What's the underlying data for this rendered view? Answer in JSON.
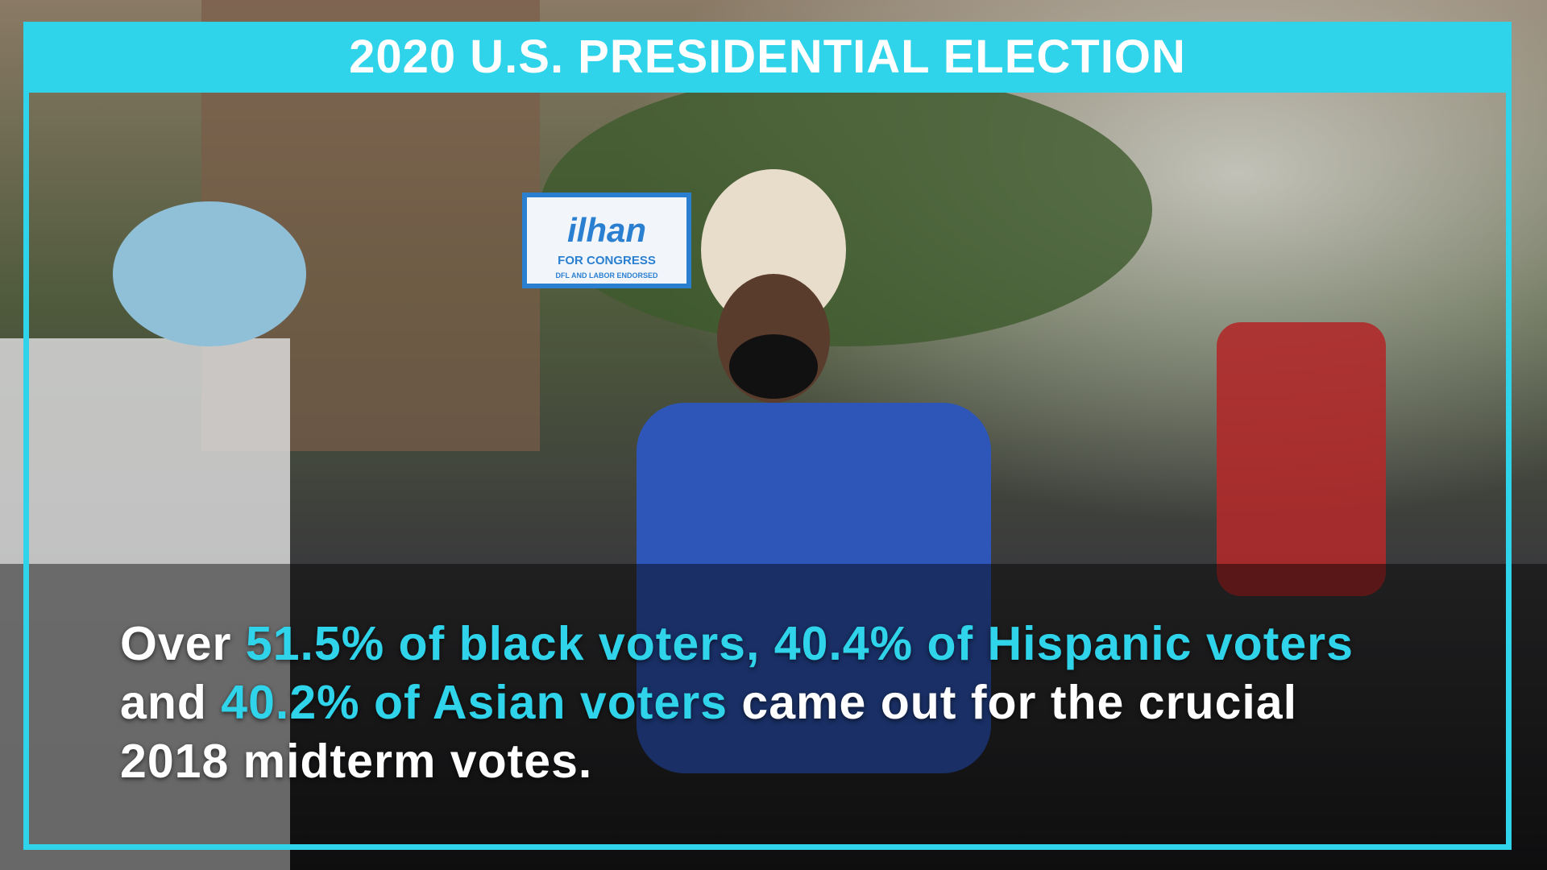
{
  "header": {
    "title": "2020 U.S. PRESIDENTIAL ELECTION"
  },
  "sign": {
    "name": "ilhan",
    "line": "FOR CONGRESS",
    "note": "DFL AND LABOR ENDORSED"
  },
  "caption": {
    "highlight_color": "#2fd3ea",
    "segments": [
      {
        "text": "Over ",
        "highlight": false
      },
      {
        "text": "51.5% of black voters, 40.4% of Hispanic voters",
        "highlight": true
      },
      {
        "text": " and ",
        "highlight": false
      },
      {
        "text": "40.2% of Asian voters",
        "highlight": true
      },
      {
        "text": " came out for the crucial 2018 midterm votes.",
        "highlight": false
      }
    ]
  }
}
